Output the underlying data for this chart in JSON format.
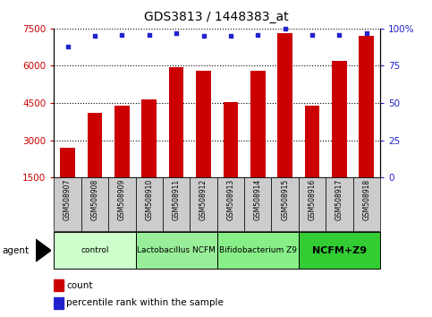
{
  "title": "GDS3813 / 1448383_at",
  "samples": [
    "GSM508907",
    "GSM508908",
    "GSM508909",
    "GSM508910",
    "GSM508911",
    "GSM508912",
    "GSM508913",
    "GSM508914",
    "GSM508915",
    "GSM508916",
    "GSM508917",
    "GSM508918"
  ],
  "counts": [
    2700,
    4100,
    4400,
    4650,
    5950,
    5800,
    4550,
    5800,
    7300,
    4400,
    6200,
    7200
  ],
  "percentiles": [
    88,
    95,
    96,
    96,
    97,
    95,
    95,
    96,
    100,
    96,
    96,
    97
  ],
  "bar_color": "#cc0000",
  "dot_color": "#2222cc",
  "ylim_left": [
    1500,
    7500
  ],
  "yticks_left": [
    1500,
    3000,
    4500,
    6000,
    7500
  ],
  "ylim_right": [
    0,
    100
  ],
  "yticks_right": [
    0,
    25,
    50,
    75,
    100
  ],
  "groups": [
    {
      "label": "control",
      "start": 0,
      "end": 2,
      "color": "#ccffcc"
    },
    {
      "label": "Lactobacillus NCFM",
      "start": 3,
      "end": 5,
      "color": "#99ee99"
    },
    {
      "label": "Bifidobacterium Z9",
      "start": 6,
      "end": 8,
      "color": "#88ee88"
    },
    {
      "label": "NCFM+Z9",
      "start": 9,
      "end": 11,
      "color": "#33cc33"
    }
  ],
  "agent_label": "agent",
  "legend_count_label": "count",
  "legend_pct_label": "percentile rank within the sample",
  "tick_color_left": "#cc0000",
  "tick_color_right": "#2222cc",
  "label_fontsize": 7,
  "title_fontsize": 10
}
